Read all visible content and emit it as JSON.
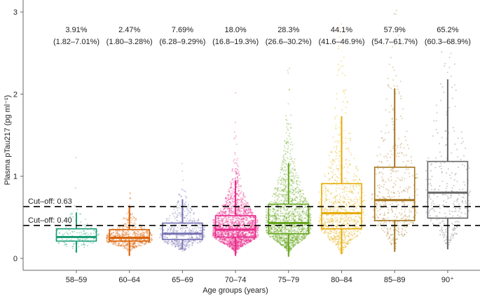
{
  "chart_data": {
    "type": "box",
    "title": "",
    "xlabel": "Age groups (years)",
    "ylabel": "Plasma pTau217 (pg ml⁻¹)",
    "ylim": [
      -0.15,
      3.15
    ],
    "yticks": [
      0,
      1,
      2,
      3
    ],
    "grid": false,
    "categories": [
      "58–59",
      "60–64",
      "65–69",
      "70–74",
      "75–79",
      "80–84",
      "85–89",
      "90⁺"
    ],
    "colors": [
      "#1b9e77",
      "#d95f02",
      "#7570b3",
      "#e7298a",
      "#66a61e",
      "#e6ab02",
      "#a6761d",
      "#666666"
    ],
    "percent_labels": [
      "3.91%",
      "2.47%",
      "7.69%",
      "18.0%",
      "28.3%",
      "44.1%",
      "57.9%",
      "65.2%"
    ],
    "ci_labels": [
      "(1.82–7.01%)",
      "(1.80–3.28%)",
      "(6.28–9.29%)",
      "(16.8–19.3%)",
      "(26.6–30.2%)",
      "(41.6–46.9%)",
      "(54.7–61.7%)",
      "(60.3–68.9%)"
    ],
    "boxes": [
      {
        "low": 0.07,
        "q1": 0.21,
        "median": 0.26,
        "q3": 0.36,
        "high": 0.56
      },
      {
        "low": 0.03,
        "q1": 0.21,
        "median": 0.25,
        "q3": 0.35,
        "high": 0.64
      },
      {
        "low": 0.11,
        "q1": 0.23,
        "median": 0.3,
        "q3": 0.43,
        "high": 0.72
      },
      {
        "low": 0.03,
        "q1": 0.26,
        "median": 0.35,
        "q3": 0.52,
        "high": 0.95
      },
      {
        "low": 0.02,
        "q1": 0.3,
        "median": 0.43,
        "q3": 0.66,
        "high": 1.16
      },
      {
        "low": 0.05,
        "q1": 0.36,
        "median": 0.55,
        "q3": 0.91,
        "high": 1.73
      },
      {
        "low": 0.08,
        "q1": 0.46,
        "median": 0.71,
        "q3": 1.11,
        "high": 2.07
      },
      {
        "low": 0.11,
        "q1": 0.49,
        "median": 0.8,
        "q3": 1.18,
        "high": 2.18
      }
    ],
    "reference_lines": [
      {
        "label": "Cut–off: 0.63",
        "value": 0.63
      },
      {
        "label": "Cut–off: 0.40",
        "value": 0.4
      }
    ]
  }
}
